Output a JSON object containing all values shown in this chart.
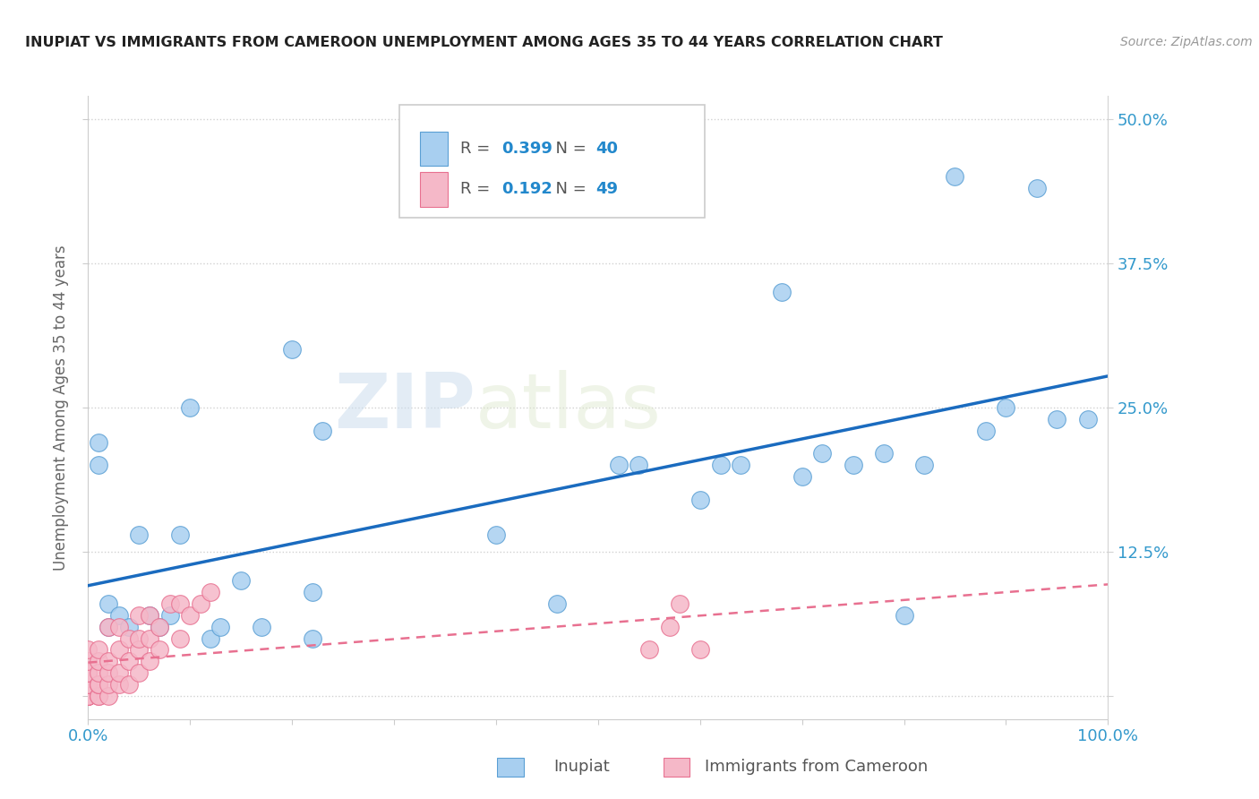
{
  "title": "INUPIAT VS IMMIGRANTS FROM CAMEROON UNEMPLOYMENT AMONG AGES 35 TO 44 YEARS CORRELATION CHART",
  "source": "Source: ZipAtlas.com",
  "ylabel": "Unemployment Among Ages 35 to 44 years",
  "xlim": [
    0,
    1.0
  ],
  "ylim": [
    -0.02,
    0.52
  ],
  "inupiat_R": 0.399,
  "inupiat_N": 40,
  "cameroon_R": 0.192,
  "cameroon_N": 49,
  "inupiat_color": "#a8cff0",
  "cameroon_color": "#f5b8c8",
  "inupiat_edge_color": "#5a9fd4",
  "cameroon_edge_color": "#e87090",
  "inupiat_line_color": "#1a6bbf",
  "cameroon_line_color": "#e87090",
  "watermark_ZIP": "ZIP",
  "watermark_atlas": "atlas",
  "title_fontsize": 12,
  "inupiat_x": [
    0.01,
    0.01,
    0.02,
    0.02,
    0.03,
    0.04,
    0.05,
    0.06,
    0.07,
    0.08,
    0.09,
    0.1,
    0.12,
    0.13,
    0.15,
    0.17,
    0.2,
    0.22,
    0.22,
    0.23,
    0.4,
    0.46,
    0.52,
    0.54,
    0.6,
    0.62,
    0.64,
    0.68,
    0.7,
    0.72,
    0.75,
    0.78,
    0.8,
    0.82,
    0.85,
    0.88,
    0.9,
    0.93,
    0.95,
    0.98
  ],
  "inupiat_y": [
    0.22,
    0.2,
    0.08,
    0.06,
    0.07,
    0.06,
    0.14,
    0.07,
    0.06,
    0.07,
    0.14,
    0.25,
    0.05,
    0.06,
    0.1,
    0.06,
    0.3,
    0.05,
    0.09,
    0.23,
    0.14,
    0.08,
    0.2,
    0.2,
    0.17,
    0.2,
    0.2,
    0.35,
    0.19,
    0.21,
    0.2,
    0.21,
    0.07,
    0.2,
    0.45,
    0.23,
    0.25,
    0.44,
    0.24,
    0.24
  ],
  "cameroon_x": [
    0.0,
    0.0,
    0.0,
    0.0,
    0.0,
    0.0,
    0.0,
    0.0,
    0.0,
    0.0,
    0.0,
    0.01,
    0.01,
    0.01,
    0.01,
    0.01,
    0.01,
    0.01,
    0.02,
    0.02,
    0.02,
    0.02,
    0.02,
    0.03,
    0.03,
    0.03,
    0.03,
    0.04,
    0.04,
    0.04,
    0.05,
    0.05,
    0.05,
    0.05,
    0.06,
    0.06,
    0.06,
    0.07,
    0.07,
    0.08,
    0.09,
    0.09,
    0.1,
    0.11,
    0.12,
    0.55,
    0.57,
    0.58,
    0.6
  ],
  "cameroon_y": [
    0.0,
    0.0,
    0.0,
    0.0,
    0.0,
    0.01,
    0.01,
    0.02,
    0.02,
    0.03,
    0.04,
    0.0,
    0.0,
    0.01,
    0.01,
    0.02,
    0.03,
    0.04,
    0.0,
    0.01,
    0.02,
    0.03,
    0.06,
    0.01,
    0.02,
    0.04,
    0.06,
    0.01,
    0.03,
    0.05,
    0.02,
    0.04,
    0.05,
    0.07,
    0.03,
    0.05,
    0.07,
    0.04,
    0.06,
    0.08,
    0.05,
    0.08,
    0.07,
    0.08,
    0.09,
    0.04,
    0.06,
    0.08,
    0.04
  ]
}
